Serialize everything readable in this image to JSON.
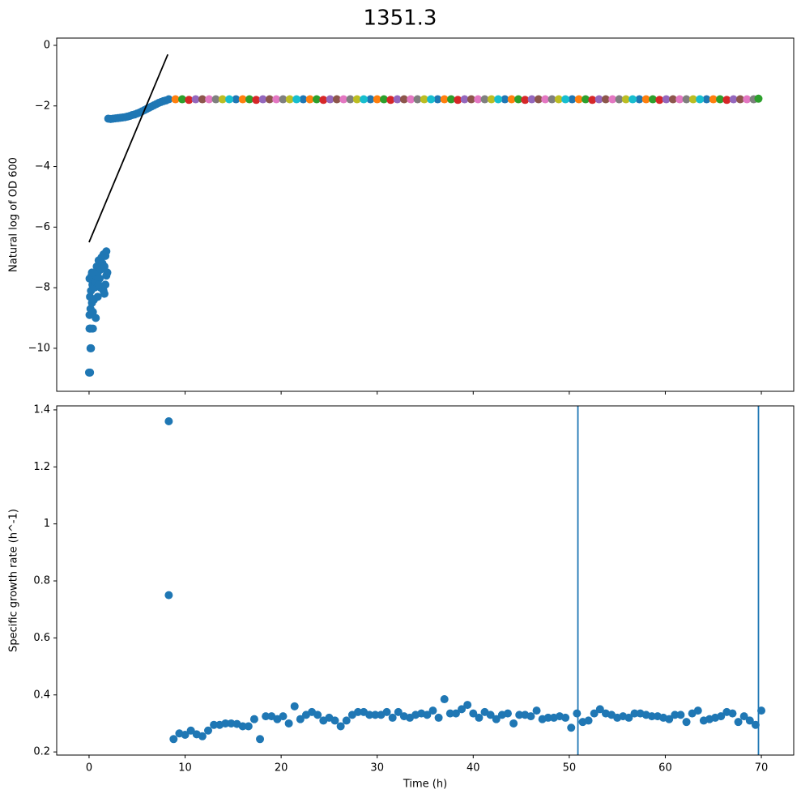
{
  "chart_data": [
    {
      "type": "scatter",
      "title": "1351.3",
      "ylabel": "Natural log of OD 600",
      "xlim": [
        -3.37,
        73.37
      ],
      "xticks": [
        0,
        10,
        20,
        30,
        40,
        50,
        60,
        70
      ],
      "xtick_labels": false,
      "ylim": [
        -11.42,
        0.24
      ],
      "yticks": [
        {
          "value": -10,
          "label": "−10"
        },
        {
          "value": -8,
          "label": "−8"
        },
        {
          "value": -6,
          "label": "−6"
        },
        {
          "value": -4,
          "label": "−4"
        },
        {
          "value": -2,
          "label": "−2"
        },
        0
      ],
      "series": [
        {
          "color": "#1f77b4",
          "x": [
            0,
            0.1,
            0.15,
            0.2,
            0.05,
            0.1,
            0.2,
            0.05,
            0.15,
            0.3,
            0.1,
            0.2,
            0.35,
            0.05,
            0.25,
            0.4,
            0.5,
            0.55,
            0.6,
            0.7,
            0.8,
            0.9,
            1.0,
            1.1,
            1.2,
            1.3,
            1.4,
            1.5,
            1.6,
            1.7,
            1.8,
            1.5,
            1.6,
            1.7,
            1.8,
            1.2,
            0.9,
            0.7,
            0.4,
            1.0,
            0.3,
            1.9,
            2.0,
            2.25,
            2.5,
            2.75,
            3,
            3.25,
            3.5,
            3.75,
            4,
            4.25,
            4.5,
            4.75,
            5,
            5.25,
            5.5,
            5.75,
            6,
            6.25,
            6.5,
            6.75,
            7,
            7.25,
            7.5,
            7.75,
            8
          ],
          "values": [
            -10.8,
            -10.8,
            -10,
            -10,
            -9.35,
            -9.35,
            -9.35,
            -8.9,
            -8.7,
            -8.5,
            -8.3,
            -8.1,
            -7.9,
            -7.7,
            -7.6,
            -8.8,
            -8.4,
            -8.0,
            -7.8,
            -7.6,
            -7.3,
            -7.5,
            -7.1,
            -7.7,
            -7.4,
            -7.0,
            -7.2,
            -6.9,
            -7.3,
            -6.95,
            -6.8,
            -8.1,
            -8.2,
            -7.9,
            -7.6,
            -8.0,
            -8.3,
            -9.0,
            -9.35,
            -7.9,
            -7.5,
            -7.5,
            -2.42,
            -2.43,
            -2.42,
            -2.41,
            -2.4,
            -2.39,
            -2.38,
            -2.37,
            -2.35,
            -2.33,
            -2.3,
            -2.28,
            -2.25,
            -2.22,
            -2.18,
            -2.14,
            -2.1,
            -2.06,
            -2.02,
            -1.98,
            -1.94,
            -1.9,
            -1.87,
            -1.84,
            -1.82
          ]
        },
        {
          "color": "#1f77b4",
          "x": [
            8.3,
            15.3,
            22.3,
            29.3,
            36.3,
            43.3,
            50.3,
            57.3,
            64.3
          ],
          "values": [
            -1.78,
            -1.78,
            -1.78,
            -1.78,
            -1.78,
            -1.78,
            -1.78,
            -1.78,
            -1.78
          ]
        },
        {
          "color": "#ff7f0e",
          "x": [
            9.0,
            16.0,
            23.0,
            30.0,
            37.0,
            44.0,
            51.0,
            58.0,
            65.0
          ],
          "values": [
            -1.78,
            -1.78,
            -1.78,
            -1.78,
            -1.78,
            -1.78,
            -1.78,
            -1.78,
            -1.78
          ]
        },
        {
          "color": "#2ca02c",
          "x": [
            9.7,
            16.7,
            23.7,
            30.7,
            37.7,
            44.7,
            51.7,
            58.7,
            65.7
          ],
          "values": [
            -1.78,
            -1.78,
            -1.78,
            -1.78,
            -1.78,
            -1.78,
            -1.78,
            -1.78,
            -1.78
          ]
        },
        {
          "color": "#d62728",
          "x": [
            10.4,
            17.4,
            24.4,
            31.4,
            38.4,
            45.4,
            52.4,
            59.4,
            66.4
          ],
          "values": [
            -1.8,
            -1.8,
            -1.8,
            -1.8,
            -1.8,
            -1.8,
            -1.8,
            -1.8,
            -1.8
          ]
        },
        {
          "color": "#9467bd",
          "x": [
            11.1,
            18.1,
            25.1,
            32.1,
            39.1,
            46.1,
            53.1,
            60.1,
            67.1
          ],
          "values": [
            -1.78,
            -1.78,
            -1.78,
            -1.78,
            -1.78,
            -1.78,
            -1.78,
            -1.78,
            -1.78
          ]
        },
        {
          "color": "#8c564b",
          "x": [
            11.8,
            18.8,
            25.8,
            32.8,
            39.8,
            46.8,
            53.8,
            60.8,
            67.8
          ],
          "values": [
            -1.78,
            -1.78,
            -1.78,
            -1.78,
            -1.78,
            -1.78,
            -1.78,
            -1.78,
            -1.78
          ]
        },
        {
          "color": "#e377c2",
          "x": [
            12.5,
            19.5,
            26.5,
            33.5,
            40.5,
            47.5,
            54.5,
            61.5,
            68.5
          ],
          "values": [
            -1.78,
            -1.78,
            -1.78,
            -1.78,
            -1.78,
            -1.78,
            -1.78,
            -1.78,
            -1.78
          ]
        },
        {
          "color": "#7f7f7f",
          "x": [
            13.2,
            20.2,
            27.2,
            34.2,
            41.2,
            48.2,
            55.2,
            62.2,
            69.2
          ],
          "values": [
            -1.78,
            -1.78,
            -1.78,
            -1.78,
            -1.78,
            -1.78,
            -1.78,
            -1.78,
            -1.78
          ]
        },
        {
          "color": "#bcbd22",
          "x": [
            13.9,
            20.9,
            27.9,
            34.9,
            41.9,
            48.9,
            55.9,
            62.9
          ],
          "values": [
            -1.78,
            -1.78,
            -1.78,
            -1.78,
            -1.78,
            -1.78,
            -1.78,
            -1.78
          ]
        },
        {
          "color": "#17becf",
          "x": [
            14.6,
            21.6,
            28.6,
            35.6,
            42.6,
            49.6,
            56.6,
            63.6
          ],
          "values": [
            -1.78,
            -1.78,
            -1.78,
            -1.78,
            -1.78,
            -1.78,
            -1.78,
            -1.78
          ]
        },
        {
          "color": "#2ca02c",
          "x": [
            69.7
          ],
          "values": [
            -1.76
          ]
        }
      ],
      "lines": [
        {
          "color": "#000000",
          "x": [
            0,
            8.2
          ],
          "values": [
            -6.5,
            -0.3
          ]
        }
      ]
    },
    {
      "type": "scatter",
      "xlabel": "Time (h)",
      "ylabel": "Specific growth rate (h^-1)",
      "xlim": [
        -3.37,
        73.37
      ],
      "xticks": [
        0,
        10,
        20,
        30,
        40,
        50,
        60,
        70
      ],
      "xtick_labels": true,
      "ylim": [
        0.189,
        1.414
      ],
      "yticks": [
        0.2,
        0.4,
        0.6,
        0.8,
        1.0,
        1.2,
        1.4
      ],
      "series": [
        {
          "color": "#1f77b4",
          "x": [
            8.3,
            8.3,
            8.8,
            9.4,
            10,
            10.6,
            11.2,
            11.8,
            12.4,
            13,
            13.6,
            14.2,
            14.8,
            15.4,
            16,
            16.6,
            17.2,
            17.8,
            18.4,
            19,
            19.6,
            20.2,
            20.8,
            21.4,
            22,
            22.6,
            23.2,
            23.8,
            24.4,
            25,
            25.6,
            26.2,
            26.8,
            27.4,
            28,
            28.6,
            29.2,
            29.8,
            30.4,
            31,
            31.6,
            32.2,
            32.8,
            33.4,
            34,
            34.6,
            35.2,
            35.8,
            36.4,
            37,
            37.6,
            38.2,
            38.8,
            39.4,
            40,
            40.6,
            41.2,
            41.8,
            42.4,
            43,
            43.6,
            44.2,
            44.8,
            45.4,
            46,
            46.6,
            47.2,
            47.8,
            48.4,
            49,
            49.6,
            50.2,
            50.8,
            51.4,
            52,
            52.6,
            53.2,
            53.8,
            54.4,
            55,
            55.6,
            56.2,
            56.8,
            57.4,
            58,
            58.6,
            59.2,
            59.8,
            60.4,
            61,
            61.6,
            62.2,
            62.8,
            63.4,
            64,
            64.6,
            65.2,
            65.8,
            66.4,
            67,
            67.6,
            68.2,
            68.8,
            69.4,
            70
          ],
          "values": [
            1.36,
            0.75,
            0.245,
            0.265,
            0.26,
            0.275,
            0.262,
            0.255,
            0.275,
            0.295,
            0.295,
            0.3,
            0.3,
            0.298,
            0.29,
            0.29,
            0.315,
            0.245,
            0.325,
            0.325,
            0.315,
            0.325,
            0.3,
            0.36,
            0.315,
            0.33,
            0.34,
            0.33,
            0.31,
            0.32,
            0.31,
            0.29,
            0.31,
            0.33,
            0.34,
            0.34,
            0.33,
            0.33,
            0.33,
            0.34,
            0.32,
            0.34,
            0.325,
            0.32,
            0.33,
            0.335,
            0.33,
            0.345,
            0.32,
            0.385,
            0.335,
            0.335,
            0.35,
            0.365,
            0.335,
            0.32,
            0.34,
            0.33,
            0.315,
            0.33,
            0.335,
            0.3,
            0.33,
            0.33,
            0.325,
            0.345,
            0.315,
            0.32,
            0.32,
            0.325,
            0.32,
            0.285,
            0.335,
            0.305,
            0.31,
            0.335,
            0.35,
            0.335,
            0.33,
            0.32,
            0.325,
            0.32,
            0.335,
            0.335,
            0.33,
            0.325,
            0.325,
            0.32,
            0.315,
            0.33,
            0.33,
            0.305,
            0.335,
            0.345,
            0.31,
            0.315,
            0.32,
            0.325,
            0.34,
            0.335,
            0.305,
            0.325,
            0.31,
            0.295,
            0.345
          ]
        }
      ],
      "vlines": {
        "color": "#1f77b4",
        "x": [
          50.9,
          69.7
        ]
      }
    }
  ]
}
